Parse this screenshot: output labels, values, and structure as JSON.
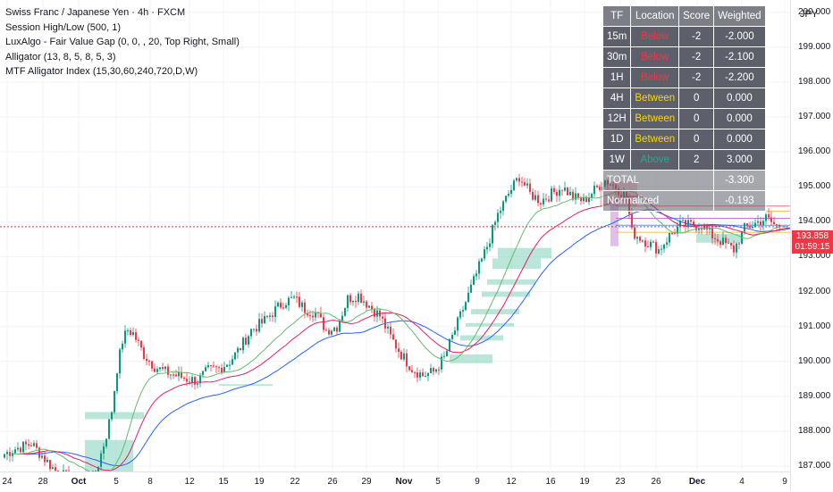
{
  "legend": {
    "title": "Swiss Franc / Japanese Yen · 4h · FXCM",
    "indicators": [
      "Session High/Low (500, 1)",
      "LuxAlgo - Fair Value Gap (0, 0, , 20, Top Right, Small)",
      "Alligator (13, 8, 5, 8, 5, 3)",
      "MTF Alligator Index (15,30,60,240,720,D,W)"
    ]
  },
  "currency": "JPY",
  "price_axis": {
    "labels": [
      "200.000",
      "199.000",
      "198.000",
      "197.000",
      "196.000",
      "195.000",
      "194.000",
      "193.000",
      "192.000",
      "191.000",
      "190.000",
      "189.000",
      "188.000",
      "187.000"
    ]
  },
  "last_price": {
    "price": "193.858",
    "countdown": "01:59:15",
    "color": "#f23645"
  },
  "time_axis": {
    "labels": [
      {
        "text": "24",
        "bold": false
      },
      {
        "text": "28",
        "bold": false
      },
      {
        "text": "Oct",
        "bold": true
      },
      {
        "text": "5",
        "bold": false
      },
      {
        "text": "8",
        "bold": false
      },
      {
        "text": "12",
        "bold": false
      },
      {
        "text": "15",
        "bold": false
      },
      {
        "text": "19",
        "bold": false
      },
      {
        "text": "22",
        "bold": false
      },
      {
        "text": "26",
        "bold": false
      },
      {
        "text": "29",
        "bold": false
      },
      {
        "text": "Nov",
        "bold": true
      },
      {
        "text": "5",
        "bold": false
      },
      {
        "text": "9",
        "bold": false
      },
      {
        "text": "12",
        "bold": false
      },
      {
        "text": "16",
        "bold": false
      },
      {
        "text": "19",
        "bold": false
      },
      {
        "text": "23",
        "bold": false
      },
      {
        "text": "26",
        "bold": false
      },
      {
        "text": "Dec",
        "bold": true
      },
      {
        "text": "4",
        "bold": false
      },
      {
        "text": "9",
        "bold": false
      }
    ]
  },
  "mtf_table": {
    "headers": [
      "TF",
      "Location",
      "Score",
      "Weighted"
    ],
    "rows": [
      {
        "tf": "15m",
        "location": "Below",
        "score": "-2",
        "weighted": "-2.000",
        "loc_class": "below"
      },
      {
        "tf": "30m",
        "location": "Below",
        "score": "-2",
        "weighted": "-2.100",
        "loc_class": "below"
      },
      {
        "tf": "1H",
        "location": "Below",
        "score": "-2",
        "weighted": "-2.200",
        "loc_class": "below"
      },
      {
        "tf": "4H",
        "location": "Between",
        "score": "0",
        "weighted": "0.000",
        "loc_class": "between"
      },
      {
        "tf": "12H",
        "location": "Between",
        "score": "0",
        "weighted": "0.000",
        "loc_class": "between"
      },
      {
        "tf": "1D",
        "location": "Between",
        "score": "0",
        "weighted": "0.000",
        "loc_class": "between"
      },
      {
        "tf": "1W",
        "location": "Above",
        "score": "2",
        "weighted": "3.000",
        "loc_class": "above"
      }
    ],
    "total_label": "TOTAL",
    "total_value": "-3.300",
    "normalized_label": "Normalized",
    "normalized_value": "-0.193"
  },
  "colors": {
    "bull": "#089981",
    "bear": "#f23645",
    "jaw": "#2962ff",
    "teeth": "#e91e63",
    "lips": "#66bb6a",
    "fvg_bull": "#7fd1b9",
    "fvg_bear": "#f7a9b0",
    "session": "#ab47bc"
  },
  "chart_data": {
    "type": "candlestick",
    "symbol": "CHFJPY",
    "timeframe": "4h",
    "ylim": [
      186.85,
      200.35
    ],
    "x_tick_labels": [
      "24",
      "28",
      "Oct",
      "5",
      "8",
      "12",
      "15",
      "19",
      "22",
      "26",
      "29",
      "Nov",
      "5",
      "9",
      "12",
      "16",
      "19",
      "23",
      "26",
      "Dec",
      "4",
      "9"
    ],
    "anchors": [
      [
        0,
        187.35
      ],
      [
        4,
        187.5
      ],
      [
        10,
        187.65
      ],
      [
        14,
        187.3
      ],
      [
        18,
        186.95
      ],
      [
        20,
        186.8
      ],
      [
        26,
        186.6
      ],
      [
        30,
        186.4
      ],
      [
        34,
        186.8
      ],
      [
        38,
        187.9
      ],
      [
        40,
        188.6
      ],
      [
        42,
        189.8
      ],
      [
        44,
        190.6
      ],
      [
        46,
        190.9
      ],
      [
        48,
        190.8
      ],
      [
        52,
        190.2
      ],
      [
        56,
        189.85
      ],
      [
        60,
        189.7
      ],
      [
        64,
        189.6
      ],
      [
        68,
        189.5
      ],
      [
        72,
        189.45
      ],
      [
        76,
        189.75
      ],
      [
        80,
        189.8
      ],
      [
        84,
        190.0
      ],
      [
        88,
        190.4
      ],
      [
        92,
        190.9
      ],
      [
        96,
        191.1
      ],
      [
        100,
        191.4
      ],
      [
        104,
        191.7
      ],
      [
        108,
        191.8
      ],
      [
        112,
        191.5
      ],
      [
        116,
        191.4
      ],
      [
        120,
        190.9
      ],
      [
        124,
        191.0
      ],
      [
        128,
        191.8
      ],
      [
        132,
        191.9
      ],
      [
        136,
        191.6
      ],
      [
        140,
        191.3
      ],
      [
        144,
        190.7
      ],
      [
        148,
        190.2
      ],
      [
        152,
        189.8
      ],
      [
        156,
        189.6
      ],
      [
        160,
        189.7
      ],
      [
        164,
        190.1
      ],
      [
        168,
        190.9
      ],
      [
        172,
        191.7
      ],
      [
        176,
        192.5
      ],
      [
        180,
        193.3
      ],
      [
        184,
        194.2
      ],
      [
        188,
        194.8
      ],
      [
        192,
        195.3
      ],
      [
        196,
        194.8
      ],
      [
        200,
        194.6
      ],
      [
        204,
        194.8
      ],
      [
        208,
        195.0
      ],
      [
        212,
        194.7
      ],
      [
        216,
        194.6
      ],
      [
        220,
        194.9
      ],
      [
        224,
        195.2
      ],
      [
        228,
        195.0
      ],
      [
        232,
        194.7
      ],
      [
        234,
        193.7
      ],
      [
        236,
        193.6
      ],
      [
        240,
        193.4
      ],
      [
        244,
        193.2
      ],
      [
        248,
        193.6
      ],
      [
        252,
        193.9
      ],
      [
        256,
        193.9
      ],
      [
        260,
        193.9
      ],
      [
        264,
        193.6
      ],
      [
        268,
        193.4
      ],
      [
        272,
        193.2
      ],
      [
        276,
        193.8
      ],
      [
        280,
        193.95
      ],
      [
        284,
        194.1
      ],
      [
        288,
        193.86
      ]
    ],
    "session_levels": [
      194.45,
      194.3,
      194.1,
      193.9,
      193.7
    ],
    "fvg_zones": [
      {
        "type": "bull",
        "top": 188.55,
        "bottom": 188.35,
        "start": 30,
        "end": 52
      },
      {
        "type": "bull",
        "top": 187.75,
        "bottom": 186.85,
        "start": 30,
        "end": 48
      },
      {
        "type": "bull",
        "top": 189.35,
        "bottom": 189.3,
        "start": 80,
        "end": 100
      },
      {
        "type": "bull",
        "top": 190.2,
        "bottom": 189.95,
        "start": 166,
        "end": 182
      },
      {
        "type": "bull",
        "top": 190.75,
        "bottom": 190.6,
        "start": 170,
        "end": 186
      },
      {
        "type": "bull",
        "top": 191.1,
        "bottom": 191.0,
        "start": 172,
        "end": 190
      },
      {
        "type": "bull",
        "top": 191.5,
        "bottom": 191.35,
        "start": 174,
        "end": 192
      },
      {
        "type": "bull",
        "top": 192.0,
        "bottom": 191.85,
        "start": 178,
        "end": 196
      },
      {
        "type": "bull",
        "top": 192.35,
        "bottom": 192.2,
        "start": 180,
        "end": 198
      },
      {
        "type": "bull",
        "top": 192.95,
        "bottom": 192.65,
        "start": 182,
        "end": 200
      },
      {
        "type": "bull",
        "top": 193.25,
        "bottom": 192.95,
        "start": 184,
        "end": 204
      },
      {
        "type": "bull",
        "top": 193.65,
        "bottom": 193.4,
        "start": 258,
        "end": 275
      },
      {
        "type": "bear",
        "top": 195.15,
        "bottom": 194.45,
        "start": 222,
        "end": 236
      }
    ]
  }
}
